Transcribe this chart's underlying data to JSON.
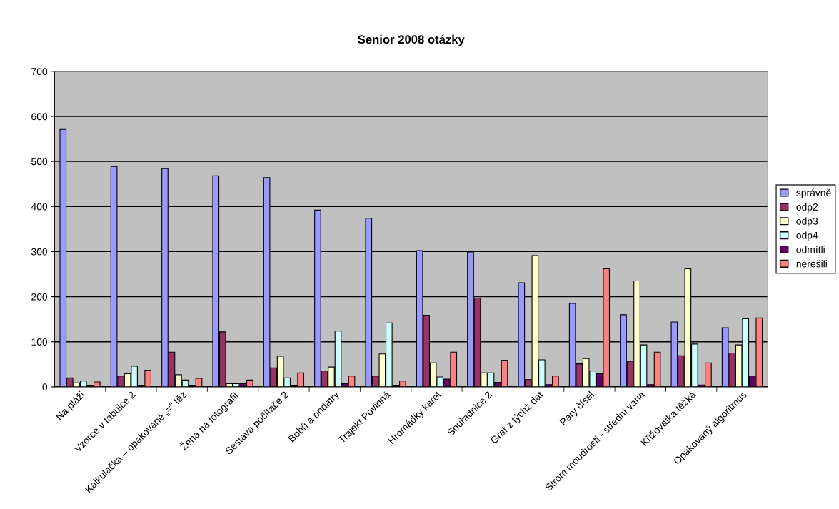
{
  "chart_data": {
    "type": "bar",
    "title": "Senior 2008 otázky",
    "categories": [
      "Na pláži",
      "Vzorce v tabulce 2",
      "Kalkulačka – opakované „=“ těž",
      "Žena na fotografii",
      "Sestava počítače 2",
      "Bobři a ondatry",
      "Trajekt Povinná",
      "Hromádky karet",
      "Souřadnice 2",
      "Graf z týchž dat",
      "Páry čísel",
      "Strom moudrosti - střední varia",
      "Křižovatka těžká",
      "Opakovaný algoritmus"
    ],
    "series": [
      {
        "name": "správně",
        "color": "#9999ff",
        "values": [
          571,
          489,
          484,
          468,
          464,
          392,
          374,
          302,
          299,
          231,
          185,
          160,
          144,
          131
        ]
      },
      {
        "name": "odp2",
        "color": "#993366",
        "values": [
          20,
          24,
          77,
          122,
          42,
          35,
          24,
          159,
          197,
          16,
          51,
          57,
          69,
          75
        ]
      },
      {
        "name": "odp3",
        "color": "#ffffcc",
        "values": [
          9,
          29,
          27,
          7,
          68,
          44,
          73,
          53,
          31,
          291,
          63,
          235,
          262,
          93
        ]
      },
      {
        "name": "odp4",
        "color": "#ccffff",
        "values": [
          13,
          46,
          15,
          7,
          20,
          124,
          142,
          22,
          31,
          60,
          35,
          93,
          95,
          151
        ]
      },
      {
        "name": "odmítli",
        "color": "#660066",
        "values": [
          2,
          2,
          2,
          7,
          2,
          7,
          2,
          17,
          10,
          5,
          29,
          5,
          4,
          24
        ]
      },
      {
        "name": "neřešili",
        "color": "#ff8080",
        "values": [
          11,
          37,
          19,
          15,
          31,
          24,
          13,
          77,
          59,
          24,
          262,
          77,
          53,
          153
        ]
      }
    ],
    "ylim": [
      0,
      700
    ],
    "yticks": [
      0,
      100,
      200,
      300,
      400,
      500,
      600,
      700
    ],
    "grid": "y",
    "legend": "right"
  }
}
